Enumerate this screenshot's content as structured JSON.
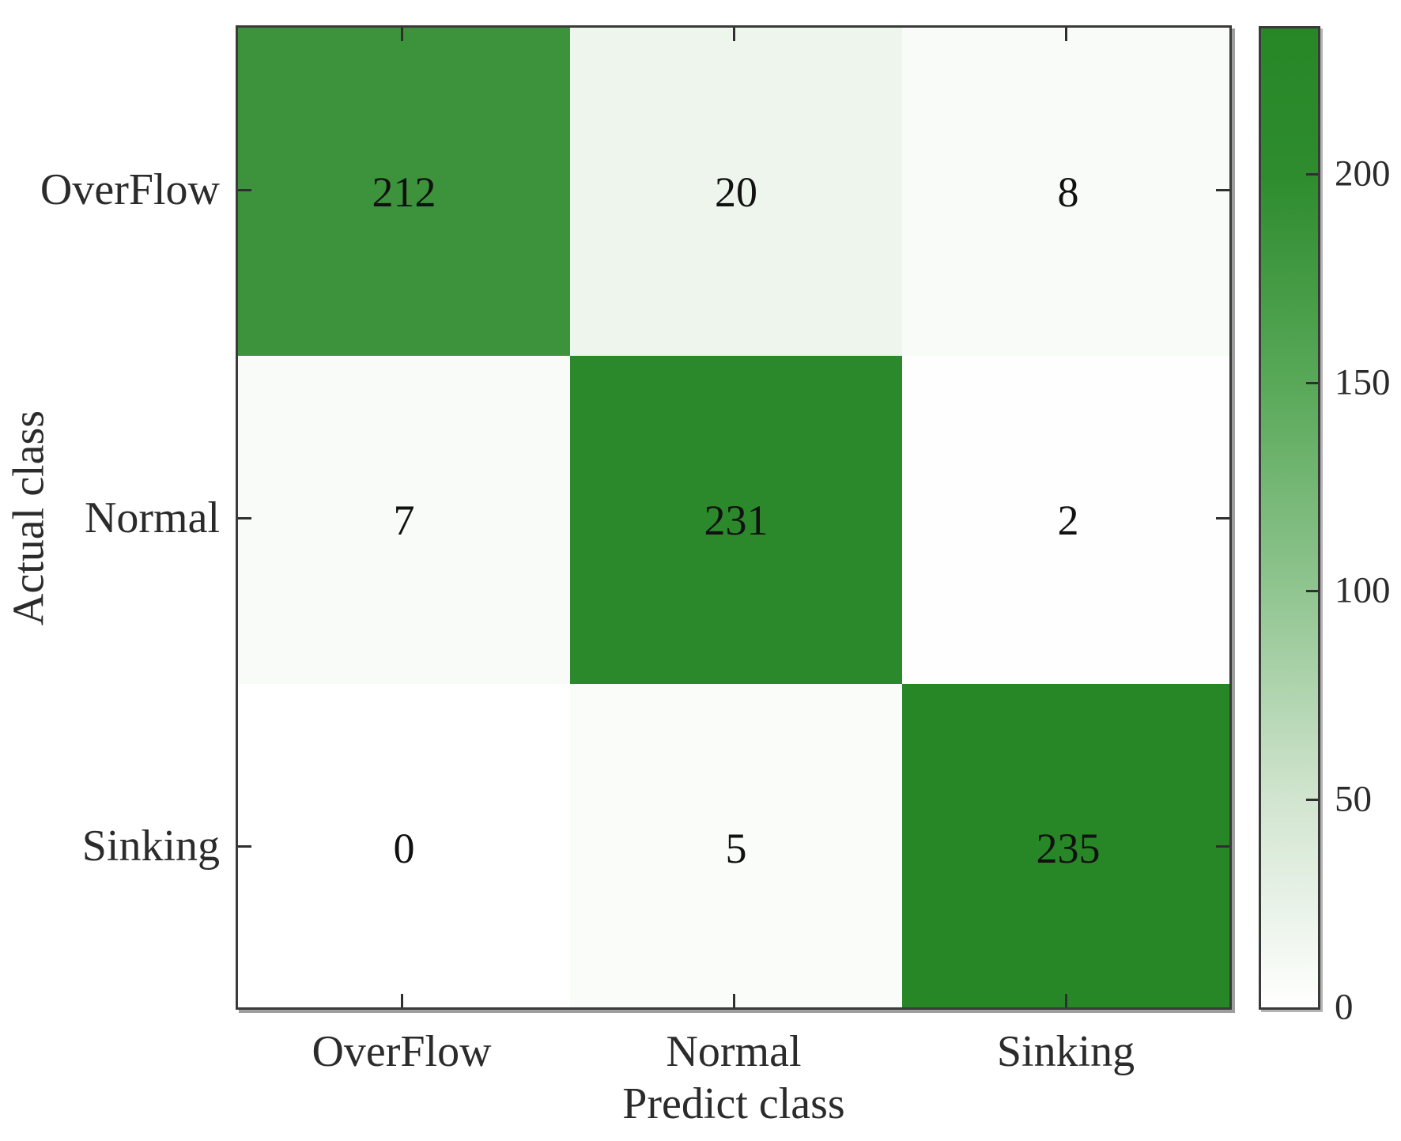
{
  "chart_data": {
    "type": "heatmap",
    "title": "",
    "xlabel": "Predict class",
    "ylabel": "Actual class",
    "x_categories": [
      "OverFlow",
      "Normal",
      "Sinking"
    ],
    "y_categories": [
      "OverFlow",
      "Normal",
      "Sinking"
    ],
    "matrix": [
      [
        212,
        20,
        8
      ],
      [
        7,
        231,
        2
      ],
      [
        0,
        5,
        235
      ]
    ],
    "value_min": 0,
    "value_max": 235,
    "colorbar": {
      "ticks": [
        200,
        150,
        100,
        50,
        0
      ],
      "min_label": "0",
      "color_low": "#ffffff",
      "color_high": "#278727"
    },
    "layout": {
      "grid": "off",
      "legend": "colorbar-right",
      "cell_text_color": "#111111"
    }
  }
}
